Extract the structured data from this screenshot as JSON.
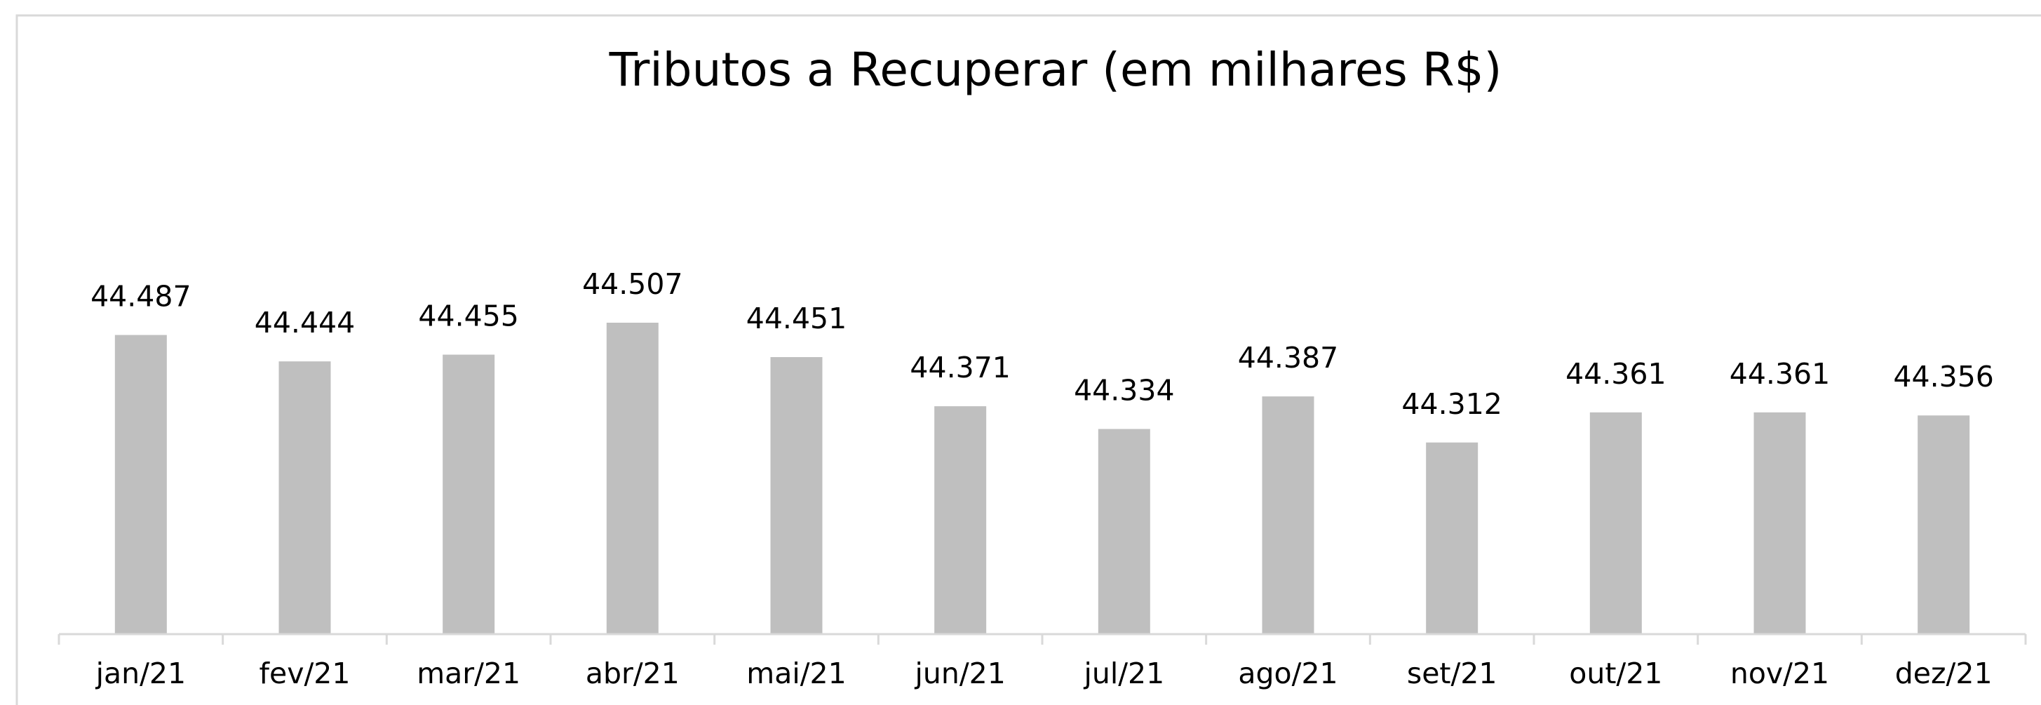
{
  "chart_data": {
    "type": "bar",
    "title": "Tributos a Recuperar (em milhares R$)",
    "categories": [
      "jan/21",
      "fev/21",
      "mar/21",
      "abr/21",
      "mai/21",
      "jun/21",
      "jul/21",
      "ago/21",
      "set/21",
      "out/21",
      "nov/21",
      "dez/21"
    ],
    "values": [
      44487,
      44444,
      44455,
      44507,
      44451,
      44371,
      44334,
      44387,
      44312,
      44361,
      44361,
      44356
    ],
    "value_labels": [
      "44.487",
      "44.444",
      "44.455",
      "44.507",
      "44.451",
      "44.371",
      "44.334",
      "44.387",
      "44.312",
      "44.361",
      "44.361",
      "44.356"
    ],
    "color": "#bfbfbf",
    "ylim": [
      44000,
      44700
    ]
  }
}
